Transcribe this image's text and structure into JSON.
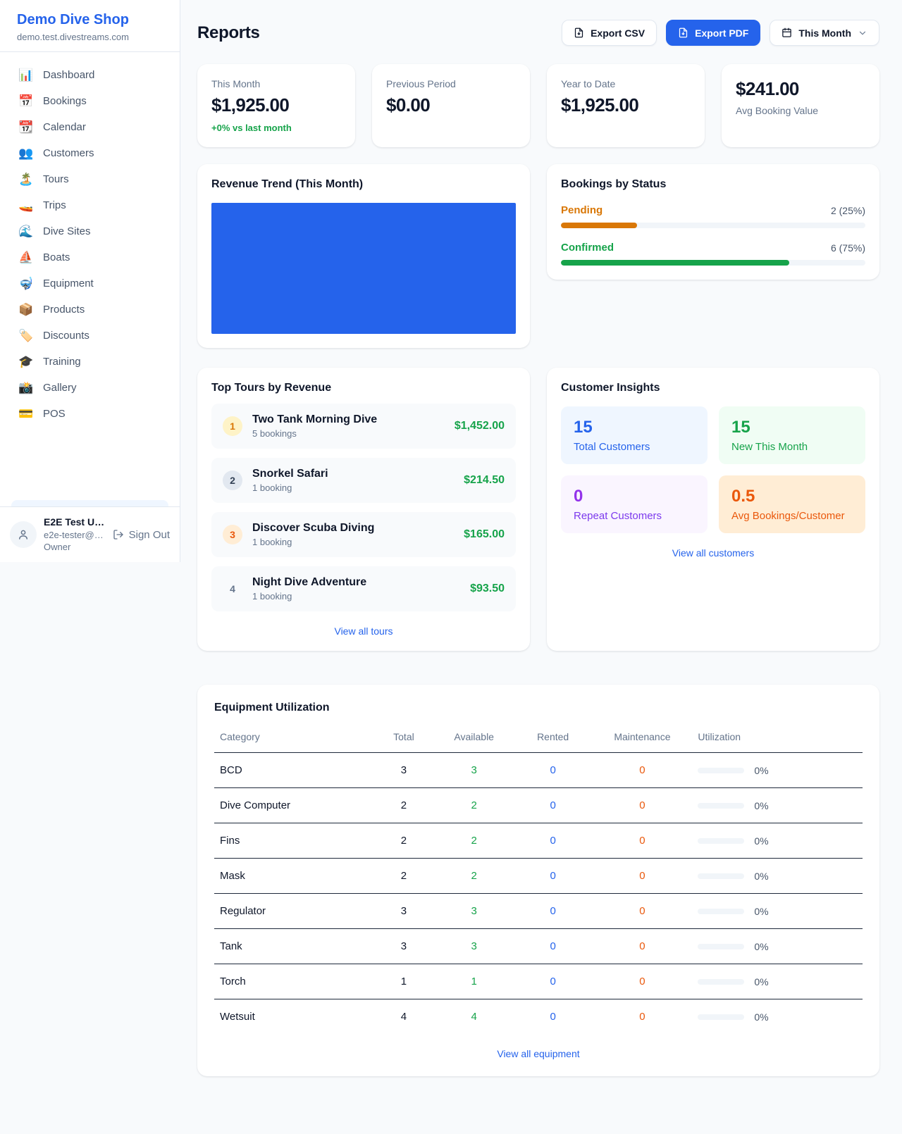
{
  "app": {
    "name": "Demo Dive Shop",
    "domain": "demo.test.divestreams.com"
  },
  "colors": {
    "accent_blue": "#2563eb",
    "positive_green": "#16a34a",
    "pending_orange": "#d97706",
    "maintenance_orange": "#ea580c",
    "repeat_purple": "#9333ea"
  },
  "sidebar": {
    "nav": [
      {
        "icon": "📊",
        "label": "Dashboard"
      },
      {
        "icon": "📅",
        "label": "Bookings"
      },
      {
        "icon": "📆",
        "label": "Calendar"
      },
      {
        "icon": "👥",
        "label": "Customers"
      },
      {
        "icon": "🏝️",
        "label": "Tours"
      },
      {
        "icon": "🚤",
        "label": "Trips"
      },
      {
        "icon": "🌊",
        "label": "Dive Sites"
      },
      {
        "icon": "⛵",
        "label": "Boats"
      },
      {
        "icon": "🤿",
        "label": "Equipment"
      },
      {
        "icon": "📦",
        "label": "Products"
      },
      {
        "icon": "🏷️",
        "label": "Discounts"
      },
      {
        "icon": "🎓",
        "label": "Training"
      },
      {
        "icon": "📸",
        "label": "Gallery"
      },
      {
        "icon": "💳",
        "label": "POS"
      }
    ],
    "user": {
      "name": "E2E Test U…",
      "email": "e2e-tester@…",
      "role": "Owner",
      "sign_out": "Sign Out"
    }
  },
  "header": {
    "title": "Reports",
    "export_csv": "Export CSV",
    "export_pdf": "Export PDF",
    "period": "This Month"
  },
  "stats": [
    {
      "label": "This Month",
      "value": "$1,925.00",
      "delta": "+0% vs last month"
    },
    {
      "label": "Previous Period",
      "value": "$0.00"
    },
    {
      "label": "Year to Date",
      "value": "$1,925.00"
    },
    {
      "label": "Avg Booking Value",
      "value": "$241.00"
    }
  ],
  "revenue_trend": {
    "title": "Revenue Trend (This Month)",
    "chart_data": {
      "type": "bar",
      "categories": [
        "This Month"
      ],
      "values": [
        1925.0
      ],
      "bar_color": "#2563eb",
      "note": "single solid bar filling entire plot area, no axes or labels visible"
    }
  },
  "bookings_by_status": {
    "title": "Bookings by Status",
    "rows": [
      {
        "label": "Pending",
        "count_text": "2 (25%)",
        "percent": 25
      },
      {
        "label": "Confirmed",
        "count_text": "6 (75%)",
        "percent": 75
      }
    ]
  },
  "top_tours": {
    "title": "Top Tours by Revenue",
    "rows": [
      {
        "rank": "1",
        "name": "Two Tank Morning Dive",
        "bookings": "5 bookings",
        "revenue": "$1,452.00"
      },
      {
        "rank": "2",
        "name": "Snorkel Safari",
        "bookings": "1 booking",
        "revenue": "$214.50"
      },
      {
        "rank": "3",
        "name": "Discover Scuba Diving",
        "bookings": "1 booking",
        "revenue": "$165.00"
      },
      {
        "rank": "4",
        "name": "Night Dive Adventure",
        "bookings": "1 booking",
        "revenue": "$93.50"
      }
    ],
    "link": "View all tours"
  },
  "customer_insights": {
    "title": "Customer Insights",
    "tiles": [
      {
        "value": "15",
        "label": "Total Customers"
      },
      {
        "value": "15",
        "label": "New This Month"
      },
      {
        "value": "0",
        "label": "Repeat Customers"
      },
      {
        "value": "0.5",
        "label": "Avg Bookings/Customer"
      }
    ],
    "link": "View all customers"
  },
  "equipment": {
    "title": "Equipment Utilization",
    "columns": [
      "Category",
      "Total",
      "Available",
      "Rented",
      "Maintenance",
      "Utilization"
    ],
    "rows": [
      {
        "category": "BCD",
        "total": "3",
        "available": "3",
        "rented": "0",
        "maintenance": "0",
        "utilization": "0%"
      },
      {
        "category": "Dive Computer",
        "total": "2",
        "available": "2",
        "rented": "0",
        "maintenance": "0",
        "utilization": "0%"
      },
      {
        "category": "Fins",
        "total": "2",
        "available": "2",
        "rented": "0",
        "maintenance": "0",
        "utilization": "0%"
      },
      {
        "category": "Mask",
        "total": "2",
        "available": "2",
        "rented": "0",
        "maintenance": "0",
        "utilization": "0%"
      },
      {
        "category": "Regulator",
        "total": "3",
        "available": "3",
        "rented": "0",
        "maintenance": "0",
        "utilization": "0%"
      },
      {
        "category": "Tank",
        "total": "3",
        "available": "3",
        "rented": "0",
        "maintenance": "0",
        "utilization": "0%"
      },
      {
        "category": "Torch",
        "total": "1",
        "available": "1",
        "rented": "0",
        "maintenance": "0",
        "utilization": "0%"
      },
      {
        "category": "Wetsuit",
        "total": "4",
        "available": "4",
        "rented": "0",
        "maintenance": "0",
        "utilization": "0%"
      }
    ],
    "link": "View all equipment"
  }
}
